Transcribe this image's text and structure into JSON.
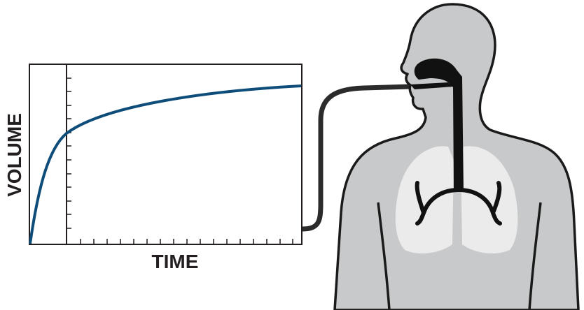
{
  "diagram": {
    "y_axis_label": "VOLUME",
    "x_axis_label": "TIME"
  }
}
